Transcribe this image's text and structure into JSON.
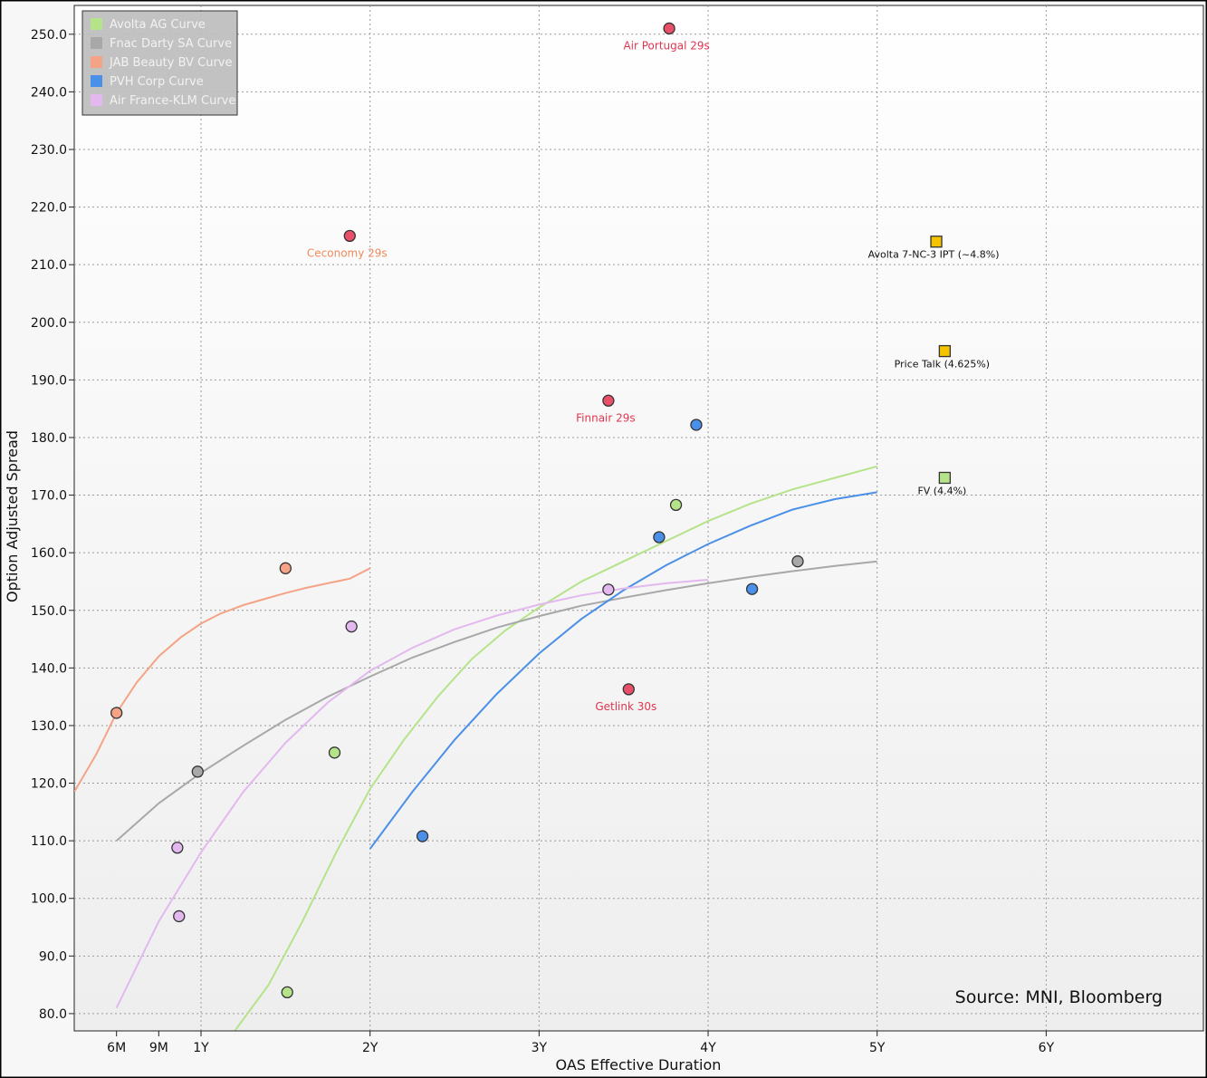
{
  "chart_data": {
    "type": "scatter",
    "title": "",
    "xlabel": "OAS Effective Duration",
    "ylabel": "Option Adjusted Spread",
    "xlim": [
      -0.25,
      6.43
    ],
    "ylim": [
      77,
      255
    ],
    "grid": true,
    "legend_position": "top-left",
    "source": "Source: MNI, Bloomberg",
    "x_ticks": [
      {
        "value": 0,
        "label": "6M"
      },
      {
        "value": 0.25,
        "label": "9M"
      },
      {
        "value": 0.5,
        "label": "1Y"
      },
      {
        "value": 1.5,
        "label": "2Y"
      },
      {
        "value": 2.5,
        "label": "3Y"
      },
      {
        "value": 3.5,
        "label": "4Y"
      },
      {
        "value": 4.5,
        "label": "5Y"
      },
      {
        "value": 5.5,
        "label": "6Y"
      }
    ],
    "y_ticks": [
      {
        "value": 80,
        "label": "80.0"
      },
      {
        "value": 90,
        "label": "90.0"
      },
      {
        "value": 100,
        "label": "100.0"
      },
      {
        "value": 110,
        "label": "110.0"
      },
      {
        "value": 120,
        "label": "120.0"
      },
      {
        "value": 130,
        "label": "130.0"
      },
      {
        "value": 140,
        "label": "140.0"
      },
      {
        "value": 150,
        "label": "150.0"
      },
      {
        "value": 160,
        "label": "160.0"
      },
      {
        "value": 170,
        "label": "170.0"
      },
      {
        "value": 180,
        "label": "180.0"
      },
      {
        "value": 190,
        "label": "190.0"
      },
      {
        "value": 200,
        "label": "200.0"
      },
      {
        "value": 210,
        "label": "210.0"
      },
      {
        "value": 220,
        "label": "220.0"
      },
      {
        "value": 230,
        "label": "230.0"
      },
      {
        "value": 240,
        "label": "240.0"
      },
      {
        "value": 250,
        "label": "250.0"
      }
    ],
    "series": [
      {
        "name": "Avolta AG Curve",
        "color": "#b5e38a",
        "curve": [
          [
            0.7,
            77
          ],
          [
            0.9,
            85
          ],
          [
            1.1,
            96
          ],
          [
            1.3,
            108
          ],
          [
            1.5,
            119
          ],
          [
            1.7,
            127.5
          ],
          [
            1.9,
            135
          ],
          [
            2.1,
            141.5
          ],
          [
            2.3,
            146.5
          ],
          [
            2.5,
            150.5
          ],
          [
            2.75,
            155
          ],
          [
            3.0,
            158.5
          ],
          [
            3.25,
            162
          ],
          [
            3.5,
            165.5
          ],
          [
            3.75,
            168.5
          ],
          [
            4.0,
            171
          ],
          [
            4.25,
            173
          ],
          [
            4.5,
            175
          ]
        ],
        "points": [
          [
            1.01,
            83.7
          ],
          [
            1.29,
            125.3
          ],
          [
            3.31,
            168.3
          ]
        ]
      },
      {
        "name": "Fnac Darty SA Curve",
        "color": "#a8a8a8",
        "curve": [
          [
            0,
            110
          ],
          [
            0.25,
            116.5
          ],
          [
            0.5,
            121.8
          ],
          [
            0.75,
            126.5
          ],
          [
            1.0,
            131
          ],
          [
            1.25,
            135
          ],
          [
            1.5,
            138.5
          ],
          [
            1.75,
            141.8
          ],
          [
            2.0,
            144.5
          ],
          [
            2.25,
            147
          ],
          [
            2.5,
            149
          ],
          [
            2.75,
            150.8
          ],
          [
            3.0,
            152.2
          ],
          [
            3.25,
            153.5
          ],
          [
            3.5,
            154.7
          ],
          [
            3.75,
            155.8
          ],
          [
            4.0,
            156.8
          ],
          [
            4.25,
            157.7
          ],
          [
            4.5,
            158.5
          ]
        ],
        "points": [
          [
            0.48,
            122
          ],
          [
            4.03,
            158.5
          ]
        ]
      },
      {
        "name": "JAB Beauty BV Curve",
        "color": "#f5a386",
        "curve": [
          [
            -0.25,
            118.5
          ],
          [
            -0.12,
            125
          ],
          [
            0,
            132.2
          ],
          [
            0.12,
            137.5
          ],
          [
            0.25,
            142
          ],
          [
            0.38,
            145.3
          ],
          [
            0.5,
            147.7
          ],
          [
            0.62,
            149.5
          ],
          [
            0.75,
            150.9
          ],
          [
            0.88,
            152
          ],
          [
            1.0,
            153
          ],
          [
            1.12,
            153.9
          ],
          [
            1.25,
            154.7
          ],
          [
            1.38,
            155.5
          ],
          [
            1.5,
            157.3
          ]
        ],
        "points": [
          [
            0,
            132.2
          ],
          [
            1.0,
            157.3
          ]
        ]
      },
      {
        "name": "PVH Corp Curve",
        "color": "#4a8fe8",
        "curve": [
          [
            1.5,
            108.6
          ],
          [
            1.75,
            118.5
          ],
          [
            2.0,
            127.5
          ],
          [
            2.25,
            135.5
          ],
          [
            2.5,
            142.5
          ],
          [
            2.75,
            148.5
          ],
          [
            3.0,
            153.5
          ],
          [
            3.25,
            157.8
          ],
          [
            3.5,
            161.5
          ],
          [
            3.75,
            164.7
          ],
          [
            4.0,
            167.5
          ],
          [
            4.25,
            169.3
          ],
          [
            4.5,
            170.5
          ]
        ],
        "points": [
          [
            1.81,
            110.8
          ],
          [
            3.21,
            162.7
          ],
          [
            3.43,
            182.2
          ],
          [
            3.76,
            153.7
          ]
        ]
      },
      {
        "name": "Air France-KLM Curve",
        "color": "#e3b8ef",
        "curve": [
          [
            0,
            81
          ],
          [
            0.25,
            96
          ],
          [
            0.5,
            108
          ],
          [
            0.75,
            118.5
          ],
          [
            1.0,
            127
          ],
          [
            1.25,
            134
          ],
          [
            1.5,
            139.5
          ],
          [
            1.75,
            143.5
          ],
          [
            2.0,
            146.7
          ],
          [
            2.25,
            149.1
          ],
          [
            2.5,
            151
          ],
          [
            2.75,
            152.6
          ],
          [
            3.0,
            153.8
          ],
          [
            3.25,
            154.7
          ],
          [
            3.5,
            155.3
          ]
        ],
        "points": [
          [
            0.36,
            108.8
          ],
          [
            0.37,
            96.9
          ],
          [
            1.39,
            147.2
          ],
          [
            2.91,
            153.6
          ]
        ]
      }
    ],
    "labeled_points": [
      {
        "label": "Air Portugal 29s",
        "x": 3.27,
        "y": 251,
        "color": "#e8506a",
        "label_color": "#e0364f"
      },
      {
        "label": "Ceconomy 29s",
        "x": 1.38,
        "y": 215,
        "color": "#e8506a",
        "label_color": "#f08a5d"
      },
      {
        "label": "Finnair 29s",
        "x": 2.91,
        "y": 186.4,
        "color": "#e8506a",
        "label_color": "#e0364f"
      },
      {
        "label": "Getlink 30s",
        "x": 3.03,
        "y": 136.3,
        "color": "#e8506a",
        "label_color": "#e0364f"
      }
    ],
    "new_issue_points": [
      {
        "label": "Avolta 7-NC-3 IPT (~4.8%)",
        "x": 4.85,
        "y": 214,
        "color": "#f5c400"
      },
      {
        "label": "Price Talk (4.625%)",
        "x": 4.9,
        "y": 195,
        "color": "#f5c400"
      },
      {
        "label": "FV (4.4%)",
        "x": 4.9,
        "y": 173,
        "color": "#b5e38a"
      }
    ]
  }
}
